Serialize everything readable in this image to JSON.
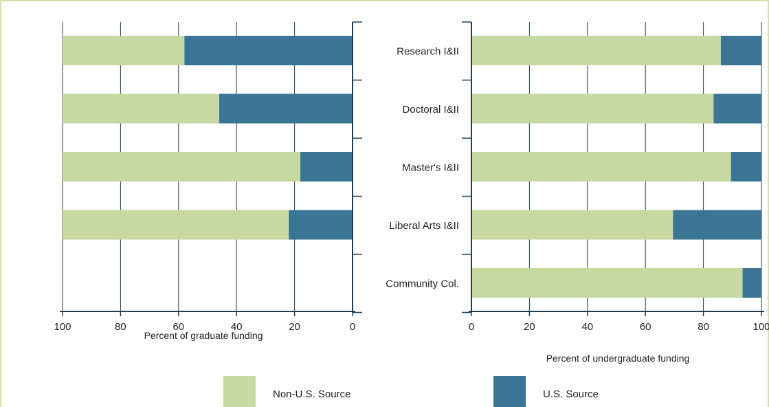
{
  "colors": {
    "non_us": "#c6d9a0",
    "us": "#3b7595",
    "grid": "#1f3d55",
    "frame": "#cfe3a6"
  },
  "chart_data": [
    {
      "type": "bar",
      "orientation": "horizontal-stacked",
      "categories": [
        "Research I&II",
        "Doctoral I&II",
        "Master's I&II",
        "Liberal Arts I&II"
      ],
      "series": [
        {
          "name": "Non-U.S. Source",
          "values": [
            42,
            54,
            82,
            78
          ]
        },
        {
          "name": "U.S. Source",
          "values": [
            58,
            46,
            18,
            22
          ]
        }
      ],
      "xlabel": "Percent of graduate funding",
      "xlim": [
        100,
        0
      ],
      "ticks": [
        "100",
        "80",
        "60",
        "40",
        "20",
        "0"
      ],
      "grid": true
    },
    {
      "type": "bar",
      "orientation": "horizontal-stacked",
      "categories": [
        "Research I&II",
        "Doctoral I&II",
        "Master's I&II",
        "Liberal Arts I&II",
        "Community Col."
      ],
      "series": [
        {
          "name": "Non-U.S. Source",
          "values": [
            86,
            83.5,
            89.5,
            69.5,
            93.5
          ]
        },
        {
          "name": "U.S. Source",
          "values": [
            14,
            16.5,
            10.5,
            30.5,
            6.5
          ]
        }
      ],
      "xlabel": "Percent of undergraduate funding",
      "xlim": [
        0,
        100
      ],
      "ticks": [
        "0",
        "20",
        "40",
        "60",
        "80",
        "100"
      ],
      "grid": true
    }
  ],
  "legend": [
    {
      "label": "Non-U.S. Source",
      "color": "#c6d9a0"
    },
    {
      "label": "U.S. Source",
      "color": "#3b7595"
    }
  ]
}
